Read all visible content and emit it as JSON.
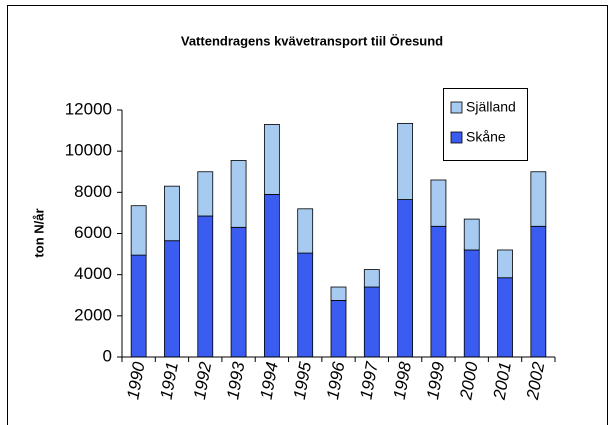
{
  "chart_data": {
    "type": "stacked_bar",
    "title": "Vattendragens kvävetransport tiil Öresund",
    "y_label": "ton N/år",
    "categories": [
      "1990",
      "1991",
      "1992",
      "1993",
      "1994",
      "1995",
      "1996",
      "1997",
      "1998",
      "1999",
      "2000",
      "2001",
      "2002"
    ],
    "series": [
      {
        "name": "Skåne",
        "color": "#3a5cf0",
        "values": [
          4950,
          5650,
          6850,
          6300,
          7900,
          5050,
          2750,
          3400,
          7650,
          6350,
          5200,
          3850,
          6350
        ]
      },
      {
        "name": "Själland",
        "color": "#a6caf0",
        "values": [
          2400,
          2650,
          2150,
          3250,
          3400,
          2150,
          650,
          850,
          3700,
          2250,
          1500,
          1350,
          2650
        ]
      }
    ],
    "ylim": [
      0,
      12000
    ],
    "yticks": [
      0,
      2000,
      4000,
      6000,
      8000,
      10000,
      12000
    ],
    "grid": false
  }
}
